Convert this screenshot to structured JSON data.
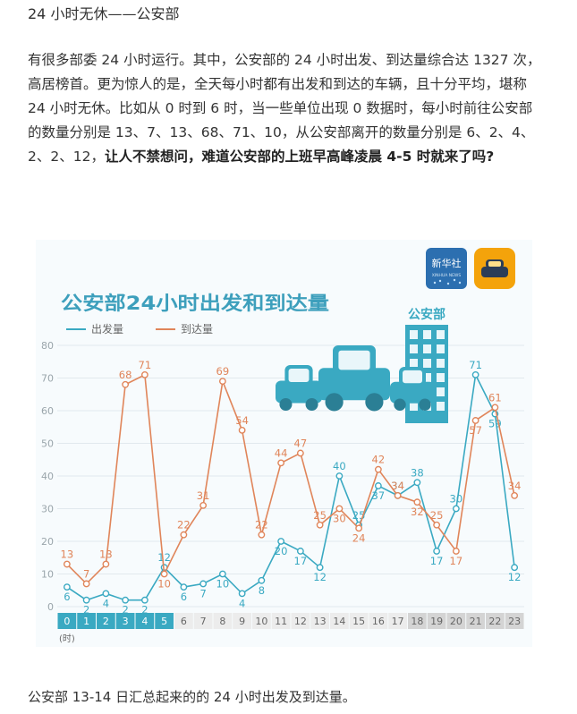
{
  "page": {
    "title": "24 小时无休——公安部",
    "paragraph": "有很多部委 24 小时运行。其中，公安部的 24 小时出发、到达量综合达 1327 次，高居榜首。更为惊人的是，全天每小时都有出发和到达的车辆，且十分平均，堪称 24 小时无休。比如从 0 时到 6 时，当一些单位出现 0 数据时，每小时前往公安部的数量分别是 13、7、13、68、71、10，从公安部离开的数量分别是 6、2、4、2、2、12，",
    "paragraph_bold": "让人不禁想问，难道公安部的上班早高峰凌晨 4-5 时就来了吗?",
    "caption": "公安部 13-14 日汇总起来的的 24 小时出发及到达量。"
  },
  "figure": {
    "building_label": "公安部",
    "logo_text": "新华社",
    "logo_subtext": "XINHUA NEWS"
  },
  "chart_data": {
    "type": "line",
    "title": "公安部24小时出发和到达量",
    "x_unit": "(时)",
    "x": [
      "0",
      "1",
      "2",
      "3",
      "4",
      "5",
      "6",
      "7",
      "8",
      "9",
      "10",
      "11",
      "12",
      "13",
      "14",
      "15",
      "16",
      "17",
      "18",
      "19",
      "20",
      "21",
      "22",
      "23"
    ],
    "highlight_hours": [
      0,
      1,
      2,
      3,
      4,
      5
    ],
    "ylim": [
      0,
      80
    ],
    "yticks": [
      0,
      10,
      20,
      30,
      40,
      50,
      60,
      70,
      80
    ],
    "grid": true,
    "legend_position": "top-left",
    "series": [
      {
        "name": "出发量",
        "color": "#3aa9c2",
        "values": [
          6,
          2,
          4,
          2,
          2,
          12,
          6,
          7,
          10,
          4,
          8,
          20,
          17,
          12,
          40,
          25,
          37,
          34,
          38,
          17,
          30,
          71,
          59,
          12
        ]
      },
      {
        "name": "到达量",
        "color": "#e0855a",
        "values": [
          13,
          7,
          13,
          68,
          71,
          10,
          22,
          31,
          69,
          54,
          22,
          44,
          47,
          25,
          30,
          24,
          42,
          34,
          32,
          25,
          17,
          57,
          61,
          34
        ]
      }
    ]
  }
}
